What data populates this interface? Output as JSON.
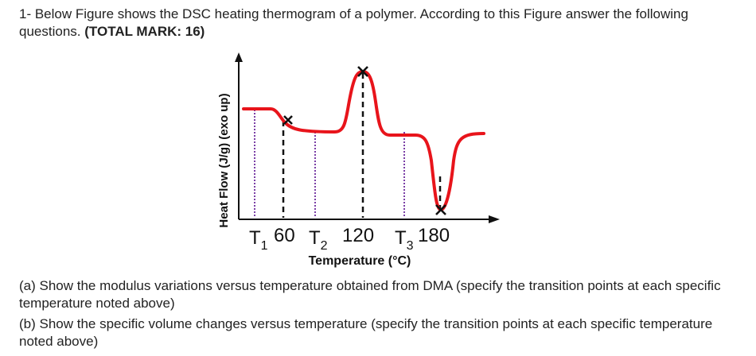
{
  "question": {
    "header": "1- Below Figure shows the DSC heating thermogram of a polymer. According to this Figure answer the following questions.",
    "total_mark": "(TOTAL MARK: 16)",
    "part_a": "(a) Show the modulus variations versus temperature obtained from DMA (specify the transition points at each specific temperature noted above)",
    "part_b": "(b) Show the specific volume changes versus temperature (specify the transition points at each specific temperature noted above)"
  },
  "figure": {
    "y_label": "Heat Flow (J/g) (exo up)",
    "x_label": "Temperature (°C)",
    "ticks": [
      {
        "letter": "T",
        "sub": "1"
      },
      {
        "text": "60"
      },
      {
        "letter": "T",
        "sub": "2"
      },
      {
        "text": "120"
      },
      {
        "letter": "T",
        "sub": "3"
      },
      {
        "text": "180"
      }
    ],
    "colors": {
      "curve": "#e8141b",
      "dotted": "#7b3fa6",
      "dashed": "#111111",
      "axis": "#111111"
    }
  }
}
